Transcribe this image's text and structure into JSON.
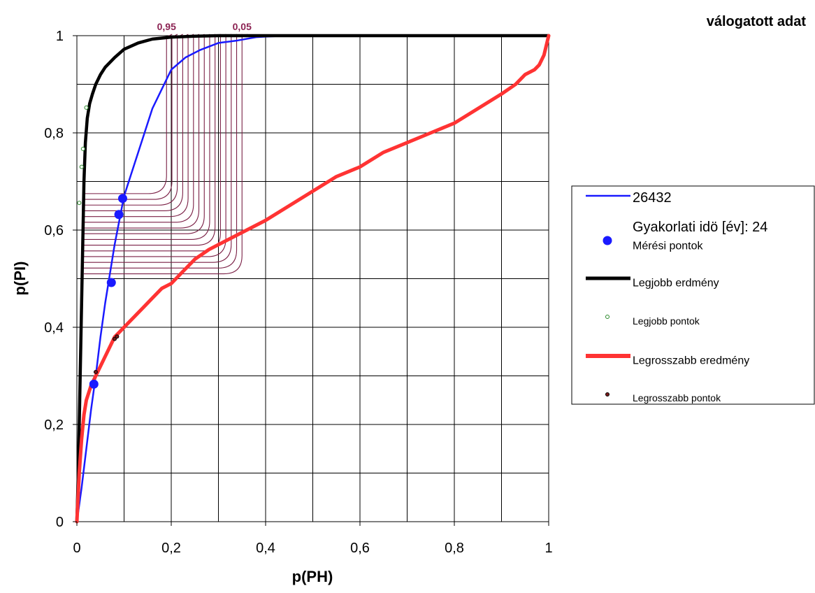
{
  "chart_data": {
    "type": "line",
    "title": "válogatott adat",
    "xlabel": "p(PH)",
    "ylabel": "p(PI)",
    "xlim": [
      0,
      1
    ],
    "ylim": [
      0,
      1
    ],
    "x_ticks": [
      "0",
      "0,2",
      "0,4",
      "0,6",
      "0,8",
      "1"
    ],
    "y_ticks": [
      "0",
      "0,2",
      "0,4",
      "0,6",
      "0,8",
      "1"
    ],
    "grid": true,
    "legend_position": "right",
    "annotations": [
      {
        "text": "0,95",
        "x": 0.19,
        "y": 1.0
      },
      {
        "text": "0,05",
        "x": 0.35,
        "y": 1.0
      }
    ],
    "colors": {
      "blue": "#1a1aff",
      "black": "#000000",
      "red": "#ff3333",
      "contours": "#7a1f45",
      "best_points": "#2a8a2a",
      "worst_points": "#7a1a1a",
      "annotation": "#8b2252"
    },
    "series": [
      {
        "name": "26432",
        "kind": "line",
        "color": "#1a1aff",
        "x": [
          0,
          0.01,
          0.02,
          0.03,
          0.04,
          0.05,
          0.06,
          0.07,
          0.08,
          0.09,
          0.1,
          0.12,
          0.14,
          0.16,
          0.18,
          0.2,
          0.23,
          0.26,
          0.3,
          0.34,
          0.38,
          0.42,
          0.47
        ],
        "y": [
          0,
          0.07,
          0.15,
          0.23,
          0.3,
          0.38,
          0.45,
          0.51,
          0.57,
          0.62,
          0.67,
          0.73,
          0.79,
          0.85,
          0.89,
          0.93,
          0.955,
          0.97,
          0.985,
          0.99,
          0.997,
          0.999,
          1.0
        ]
      },
      {
        "name": "Mérési pontok",
        "kind": "points",
        "color": "#1a1aff",
        "x": [
          0.036,
          0.073,
          0.089,
          0.097
        ],
        "y": [
          0.283,
          0.492,
          0.632,
          0.665
        ]
      },
      {
        "name": "Legjobb erdmény",
        "kind": "line",
        "color": "#000000",
        "x": [
          0,
          0.003,
          0.005,
          0.007,
          0.009,
          0.011,
          0.013,
          0.015,
          0.018,
          0.022,
          0.027,
          0.033,
          0.04,
          0.05,
          0.06,
          0.08,
          0.1,
          0.13,
          0.16,
          0.2,
          0.25,
          0.3,
          0.4,
          0.6,
          0.8,
          1.0
        ],
        "y": [
          0,
          0.1,
          0.2,
          0.3,
          0.4,
          0.5,
          0.6,
          0.7,
          0.78,
          0.83,
          0.86,
          0.88,
          0.9,
          0.92,
          0.935,
          0.955,
          0.972,
          0.985,
          0.993,
          0.997,
          0.999,
          1.0,
          1.0,
          1.0,
          1.0,
          1.0
        ]
      },
      {
        "name": "Legjobb pontok",
        "kind": "points",
        "color": "#2a8a2a",
        "x": [
          0.005,
          0.01,
          0.013,
          0.02
        ],
        "y": [
          0.656,
          0.73,
          0.767,
          0.852
        ]
      },
      {
        "name": "Legrosszabb eredmény",
        "kind": "line",
        "color": "#ff3333",
        "x": [
          0,
          0.005,
          0.01,
          0.015,
          0.02,
          0.03,
          0.04,
          0.05,
          0.06,
          0.07,
          0.08,
          0.09,
          0.1,
          0.12,
          0.14,
          0.16,
          0.18,
          0.2,
          0.22,
          0.25,
          0.28,
          0.32,
          0.36,
          0.4,
          0.45,
          0.5,
          0.55,
          0.6,
          0.65,
          0.7,
          0.75,
          0.8,
          0.85,
          0.9,
          0.93,
          0.95,
          0.97,
          0.98,
          0.99,
          1.0
        ],
        "y": [
          0,
          0.1,
          0.17,
          0.22,
          0.25,
          0.28,
          0.3,
          0.32,
          0.34,
          0.36,
          0.38,
          0.39,
          0.4,
          0.42,
          0.44,
          0.46,
          0.48,
          0.49,
          0.51,
          0.54,
          0.56,
          0.58,
          0.6,
          0.62,
          0.65,
          0.68,
          0.71,
          0.73,
          0.76,
          0.78,
          0.8,
          0.82,
          0.85,
          0.88,
          0.9,
          0.92,
          0.93,
          0.94,
          0.96,
          1.0
        ]
      },
      {
        "name": "Legrosszabb pontok",
        "kind": "points",
        "color": "#7a1a1a",
        "x": [
          0.04,
          0.08,
          0.085
        ],
        "y": [
          0.308,
          0.376,
          0.381
        ]
      }
    ],
    "contours": {
      "count": 15,
      "x_start": 0.19,
      "x_end": 0.35,
      "y_top": 0.675,
      "y_bottom": 0.51,
      "x_left": 0.0
    }
  },
  "legend": {
    "entries": [
      {
        "label": "26432",
        "symbol": "line",
        "color": "#1a1aff"
      },
      {
        "label": "Gyakorlati idö [év]: 24",
        "symbol": "none",
        "color": ""
      },
      {
        "label": "Mérési pontok",
        "symbol": "dot",
        "color": "#1a1aff"
      },
      {
        "label": "Legjobb erdmény",
        "symbol": "thick-line",
        "color": "#000000"
      },
      {
        "label": "Legjobb pontok",
        "symbol": "small-dot",
        "color": "#2a8a2a"
      },
      {
        "label": "Legrosszabb eredmény",
        "symbol": "thick-line",
        "color": "#ff3333"
      },
      {
        "label": "Legrosszabb pontok",
        "symbol": "small-dot",
        "color": "#7a1a1a"
      }
    ]
  }
}
